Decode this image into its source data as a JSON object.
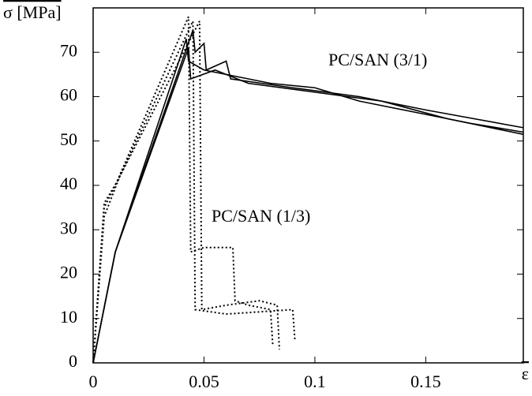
{
  "chart_data": {
    "type": "line",
    "y_label": "σ [MPa]",
    "x_label": "ε",
    "annotations": [
      "PC/SAN (3/1)",
      "PC/SAN (1/3)"
    ],
    "xlim": [
      0,
      0.194
    ],
    "ylim": [
      0,
      80
    ],
    "xticks": [
      0,
      0.05,
      0.1,
      0.15
    ],
    "yticks": [
      0,
      10,
      20,
      30,
      40,
      50,
      60,
      70
    ],
    "series": [
      {
        "color": "#000000",
        "style": "solid",
        "x": [
          0,
          0.01,
          0.042,
          0.043,
          0.05,
          0.06,
          0.08,
          0.1,
          0.12,
          0.15,
          0.17,
          0.194
        ],
        "values": [
          0,
          25,
          73,
          68,
          66,
          65,
          63,
          62,
          59,
          56,
          54,
          52
        ]
      },
      {
        "color": "#000000",
        "style": "solid",
        "x": [
          0,
          0.01,
          0.045,
          0.046,
          0.05,
          0.051,
          0.06,
          0.062,
          0.09,
          0.12,
          0.15,
          0.194
        ],
        "values": [
          0,
          25,
          75,
          70,
          72,
          66,
          68,
          64,
          62,
          60,
          57,
          53
        ]
      },
      {
        "color": "#000000",
        "style": "solid",
        "x": [
          0,
          0.01,
          0.043,
          0.044,
          0.055,
          0.07,
          0.1,
          0.13,
          0.16,
          0.194
        ],
        "values": [
          0,
          25,
          71,
          64,
          66,
          63,
          61,
          59,
          55,
          51.5
        ]
      },
      {
        "color": "#000000",
        "style": "dotted",
        "x": [
          0,
          0.005,
          0.01,
          0.043,
          0.044,
          0.05,
          0.063,
          0.064,
          0.07,
          0.08,
          0.081
        ],
        "values": [
          0,
          35,
          40,
          78,
          25,
          26,
          26,
          14,
          13,
          12,
          4
        ]
      },
      {
        "color": "#000000",
        "style": "dotted",
        "x": [
          0,
          0.005,
          0.012,
          0.048,
          0.049,
          0.06,
          0.075,
          0.083,
          0.084
        ],
        "values": [
          0,
          33,
          42,
          77,
          12,
          13,
          14,
          13,
          3
        ]
      },
      {
        "color": "#000000",
        "style": "dotted",
        "x": [
          0,
          0.005,
          0.011,
          0.045,
          0.046,
          0.06,
          0.09,
          0.091
        ],
        "values": [
          0,
          36,
          41,
          77,
          12,
          11,
          12,
          5
        ]
      }
    ]
  }
}
